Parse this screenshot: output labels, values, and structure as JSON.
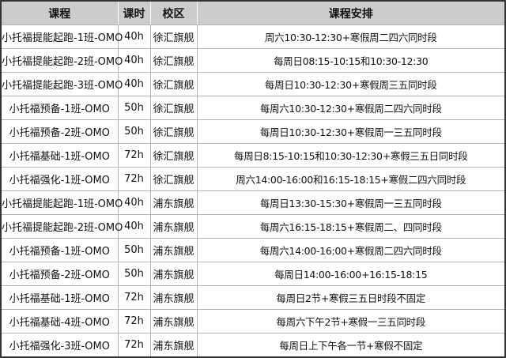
{
  "table": {
    "headers": [
      "课程",
      "课时",
      "校区",
      "课程安排"
    ],
    "rows": [
      [
        "小托福提能起跑-1班-OMO",
        "40h",
        "徐汇旗舰",
        "周六10:30-12:30+寒假周二四六同时段"
      ],
      [
        "小托福提能起跑-2班-OMO",
        "40h",
        "徐汇旗舰",
        "每周日08:15-10:15和10:30-12:30"
      ],
      [
        "小托福提能起跑-3班-OMO",
        "40h",
        "徐汇旗舰",
        "每周日10:30-12:30+寒假周三五同时段"
      ],
      [
        "小托福预备-1班-OMO",
        "50h",
        "徐汇旗舰",
        "每周六10:30-12:30+寒假周二四六同时段"
      ],
      [
        "小托福预备-2班-OMO",
        "50h",
        "徐汇旗舰",
        "每周日10:30-12:30+寒假周一三五同时段"
      ],
      [
        "小托福基础-1班-OMO",
        "72h",
        "徐汇旗舰",
        "每周日8:15-10:15和10:30-12:30+寒假三五日同时段"
      ],
      [
        "小托福强化-1班-OMO",
        "72h",
        "徐汇旗舰",
        "周六14:00-16:00和16:15-18:15+寒假二四六同时段"
      ],
      [
        "小托福提能起跑-1班-OMO",
        "40h",
        "浦东旗舰",
        "每周日13:30-15:30+寒假周一三五同时段"
      ],
      [
        "小托福提能起跑-2班-OMO",
        "40h",
        "浦东旗舰",
        "每周六16:15-18:15+寒假周二、四同时段"
      ],
      [
        "小托福预备-1班-OMO",
        "50h",
        "浦东旗舰",
        "每周六14:00-16:00+寒假周二四六同时段"
      ],
      [
        "小托福预备-2班-OMO",
        "50h",
        "浦东旗舰",
        "每周日14:00-16:00+16:15-18:15"
      ],
      [
        "小托福基础-1班-OMO",
        "72h",
        "浦东旗舰",
        "每周日2节+寒假三五日时段不固定"
      ],
      [
        "小托福基础-4班-OMO",
        "72h",
        "浦东旗舰",
        "每周六下午2节+寒假一三五同时段"
      ],
      [
        "小托福强化-3班-OMO",
        "72h",
        "浦东旗舰",
        "每周日上下午各一节+寒假不固定"
      ]
    ]
  }
}
